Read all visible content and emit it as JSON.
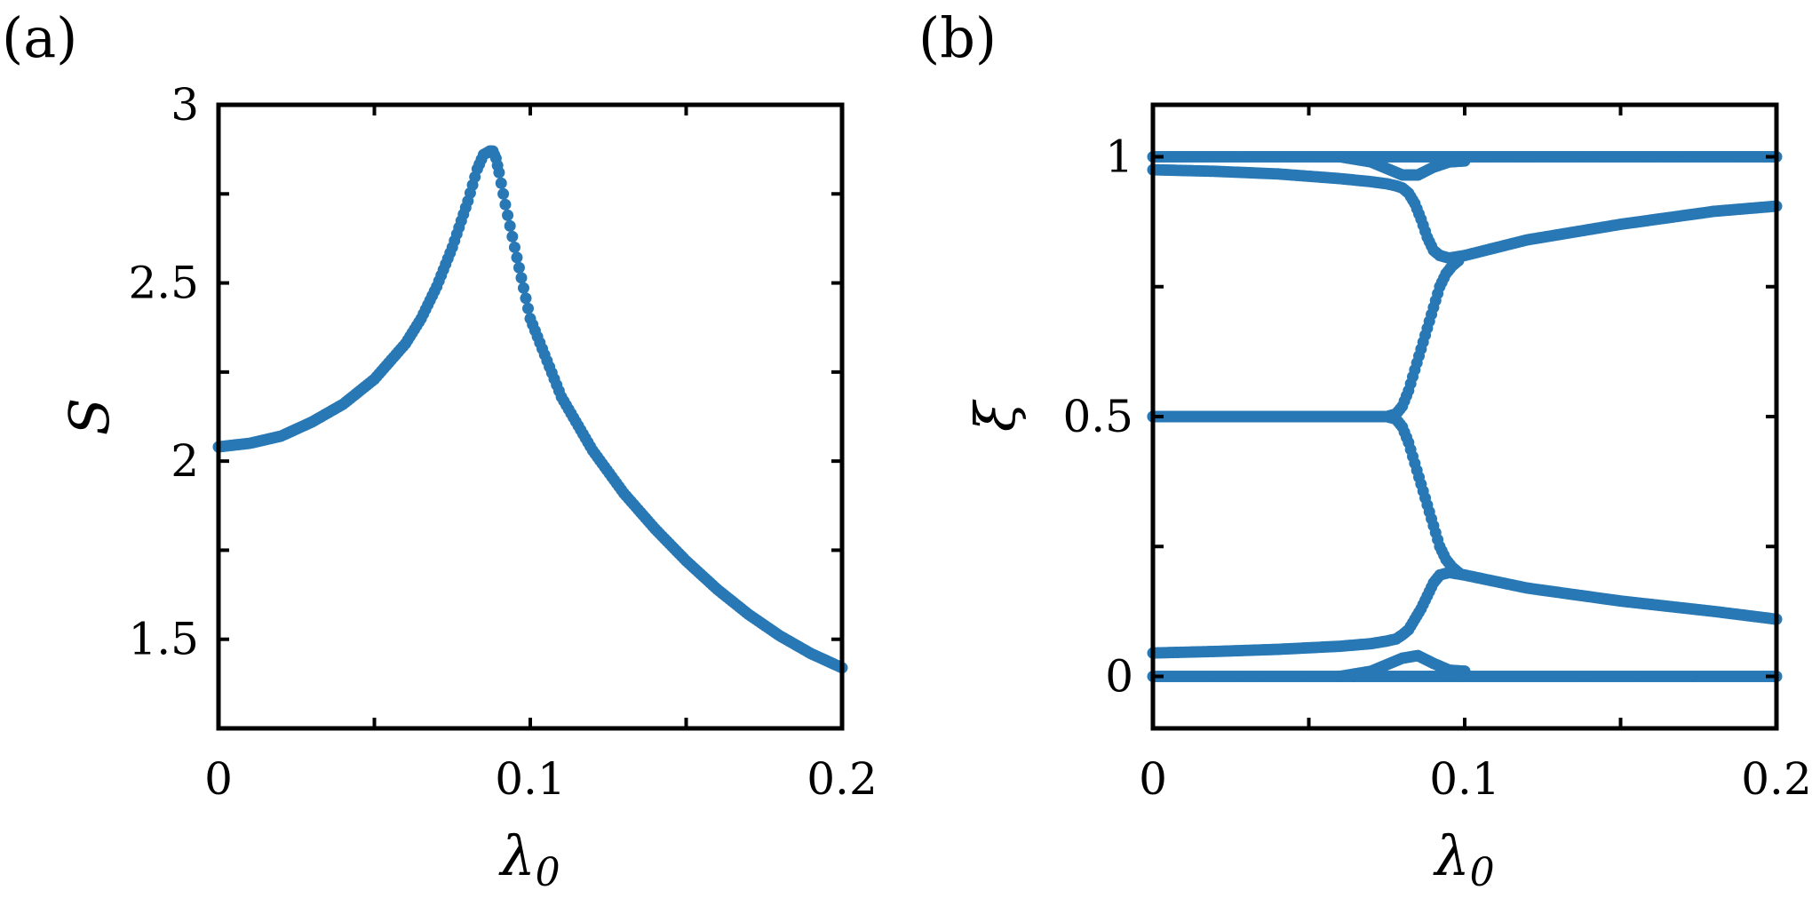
{
  "chart_data": [
    {
      "panel_label": "(a)",
      "type": "scatter",
      "xlabel": "λ",
      "xlabel_subscript": "0",
      "ylabel": "S",
      "xlim": [
        0,
        0.2
      ],
      "ylim": [
        1.25,
        3
      ],
      "xticks": [
        0,
        0.05,
        0.1,
        0.15,
        0.2
      ],
      "yticks": [
        1.5,
        1.75,
        2,
        2.25,
        2.5,
        2.75,
        3
      ],
      "xtick_labels": [
        "0",
        "0.1",
        "0.2"
      ],
      "xtick_label_values": [
        0,
        0.1,
        0.2
      ],
      "ytick_labels": [
        "1.5",
        "2",
        "2.5",
        "3"
      ],
      "ytick_label_values": [
        1.5,
        2,
        2.5,
        3
      ],
      "grid": false,
      "color": "#2878b5",
      "series": [
        {
          "x": [
            0,
            0.01,
            0.02,
            0.03,
            0.04,
            0.05,
            0.06,
            0.065,
            0.07,
            0.075,
            0.08,
            0.083,
            0.085,
            0.087,
            0.088,
            0.089,
            0.09,
            0.092,
            0.095,
            0.1,
            0.11,
            0.12,
            0.13,
            0.14,
            0.15,
            0.16,
            0.17,
            0.18,
            0.19,
            0.2
          ],
          "y": [
            2.04,
            2.05,
            2.07,
            2.11,
            2.16,
            2.23,
            2.33,
            2.4,
            2.49,
            2.6,
            2.73,
            2.82,
            2.86,
            2.87,
            2.87,
            2.85,
            2.81,
            2.72,
            2.6,
            2.4,
            2.18,
            2.03,
            1.91,
            1.81,
            1.72,
            1.64,
            1.57,
            1.51,
            1.46,
            1.42
          ]
        }
      ]
    },
    {
      "panel_label": "(b)",
      "type": "scatter",
      "xlabel": "λ",
      "xlabel_subscript": "0",
      "ylabel": "ξ",
      "xlim": [
        0,
        0.2
      ],
      "ylim": [
        -0.1,
        1.1
      ],
      "xticks": [
        0,
        0.05,
        0.1,
        0.15,
        0.2
      ],
      "yticks": [
        0,
        0.25,
        0.5,
        0.75,
        1
      ],
      "xtick_labels": [
        "0",
        "0.1",
        "0.2"
      ],
      "xtick_label_values": [
        0,
        0.1,
        0.2
      ],
      "ytick_labels": [
        "0",
        "0.5",
        "1"
      ],
      "ytick_label_values": [
        0,
        0.5,
        1
      ],
      "grid": false,
      "color": "#2878b5",
      "series": [
        {
          "x": [
            0,
            0.2
          ],
          "y": [
            1.0,
            1.0
          ]
        },
        {
          "x": [
            0,
            0.2
          ],
          "y": [
            0.0,
            0.0
          ]
        },
        {
          "x": [
            0,
            0.02,
            0.04,
            0.06,
            0.07,
            0.075,
            0.078,
            0.08,
            0.082,
            0.084,
            0.086,
            0.088,
            0.09,
            0.092,
            0.095,
            0.1,
            0.12,
            0.15,
            0.18,
            0.2
          ],
          "y": [
            0.975,
            0.972,
            0.967,
            0.958,
            0.952,
            0.948,
            0.944,
            0.94,
            0.93,
            0.91,
            0.88,
            0.845,
            0.82,
            0.81,
            0.805,
            0.81,
            0.84,
            0.87,
            0.895,
            0.905
          ]
        },
        {
          "x": [
            0,
            0.02,
            0.04,
            0.06,
            0.07,
            0.075,
            0.078,
            0.08,
            0.082,
            0.084,
            0.086,
            0.088,
            0.09,
            0.092,
            0.095,
            0.1,
            0.12,
            0.15,
            0.18,
            0.2
          ],
          "y": [
            0.045,
            0.048,
            0.052,
            0.058,
            0.063,
            0.068,
            0.072,
            0.08,
            0.09,
            0.11,
            0.13,
            0.155,
            0.18,
            0.195,
            0.2,
            0.195,
            0.17,
            0.145,
            0.125,
            0.11
          ]
        },
        {
          "x": [
            0,
            0.02,
            0.04,
            0.06,
            0.075,
            0.078,
            0.08,
            0.082,
            0.084,
            0.086,
            0.088,
            0.09,
            0.092,
            0.094,
            0.096,
            0.098
          ],
          "y": [
            0.5,
            0.5,
            0.5,
            0.5,
            0.5,
            0.505,
            0.52,
            0.55,
            0.59,
            0.63,
            0.67,
            0.71,
            0.75,
            0.775,
            0.79,
            0.8
          ]
        },
        {
          "x": [
            0,
            0.02,
            0.04,
            0.06,
            0.075,
            0.078,
            0.08,
            0.082,
            0.084,
            0.086,
            0.088,
            0.09,
            0.092,
            0.094,
            0.096,
            0.098
          ],
          "y": [
            0.5,
            0.5,
            0.5,
            0.5,
            0.5,
            0.495,
            0.48,
            0.45,
            0.41,
            0.37,
            0.33,
            0.29,
            0.25,
            0.225,
            0.21,
            0.2
          ]
        },
        {
          "x": [
            0.06,
            0.07,
            0.08,
            0.085,
            0.09,
            0.095,
            0.1
          ],
          "y": [
            1.0,
            0.99,
            0.965,
            0.965,
            0.98,
            0.99,
            0.992
          ]
        },
        {
          "x": [
            0.06,
            0.07,
            0.08,
            0.085,
            0.09,
            0.095,
            0.1
          ],
          "y": [
            0.0,
            0.01,
            0.035,
            0.04,
            0.025,
            0.012,
            0.01
          ]
        }
      ]
    }
  ]
}
